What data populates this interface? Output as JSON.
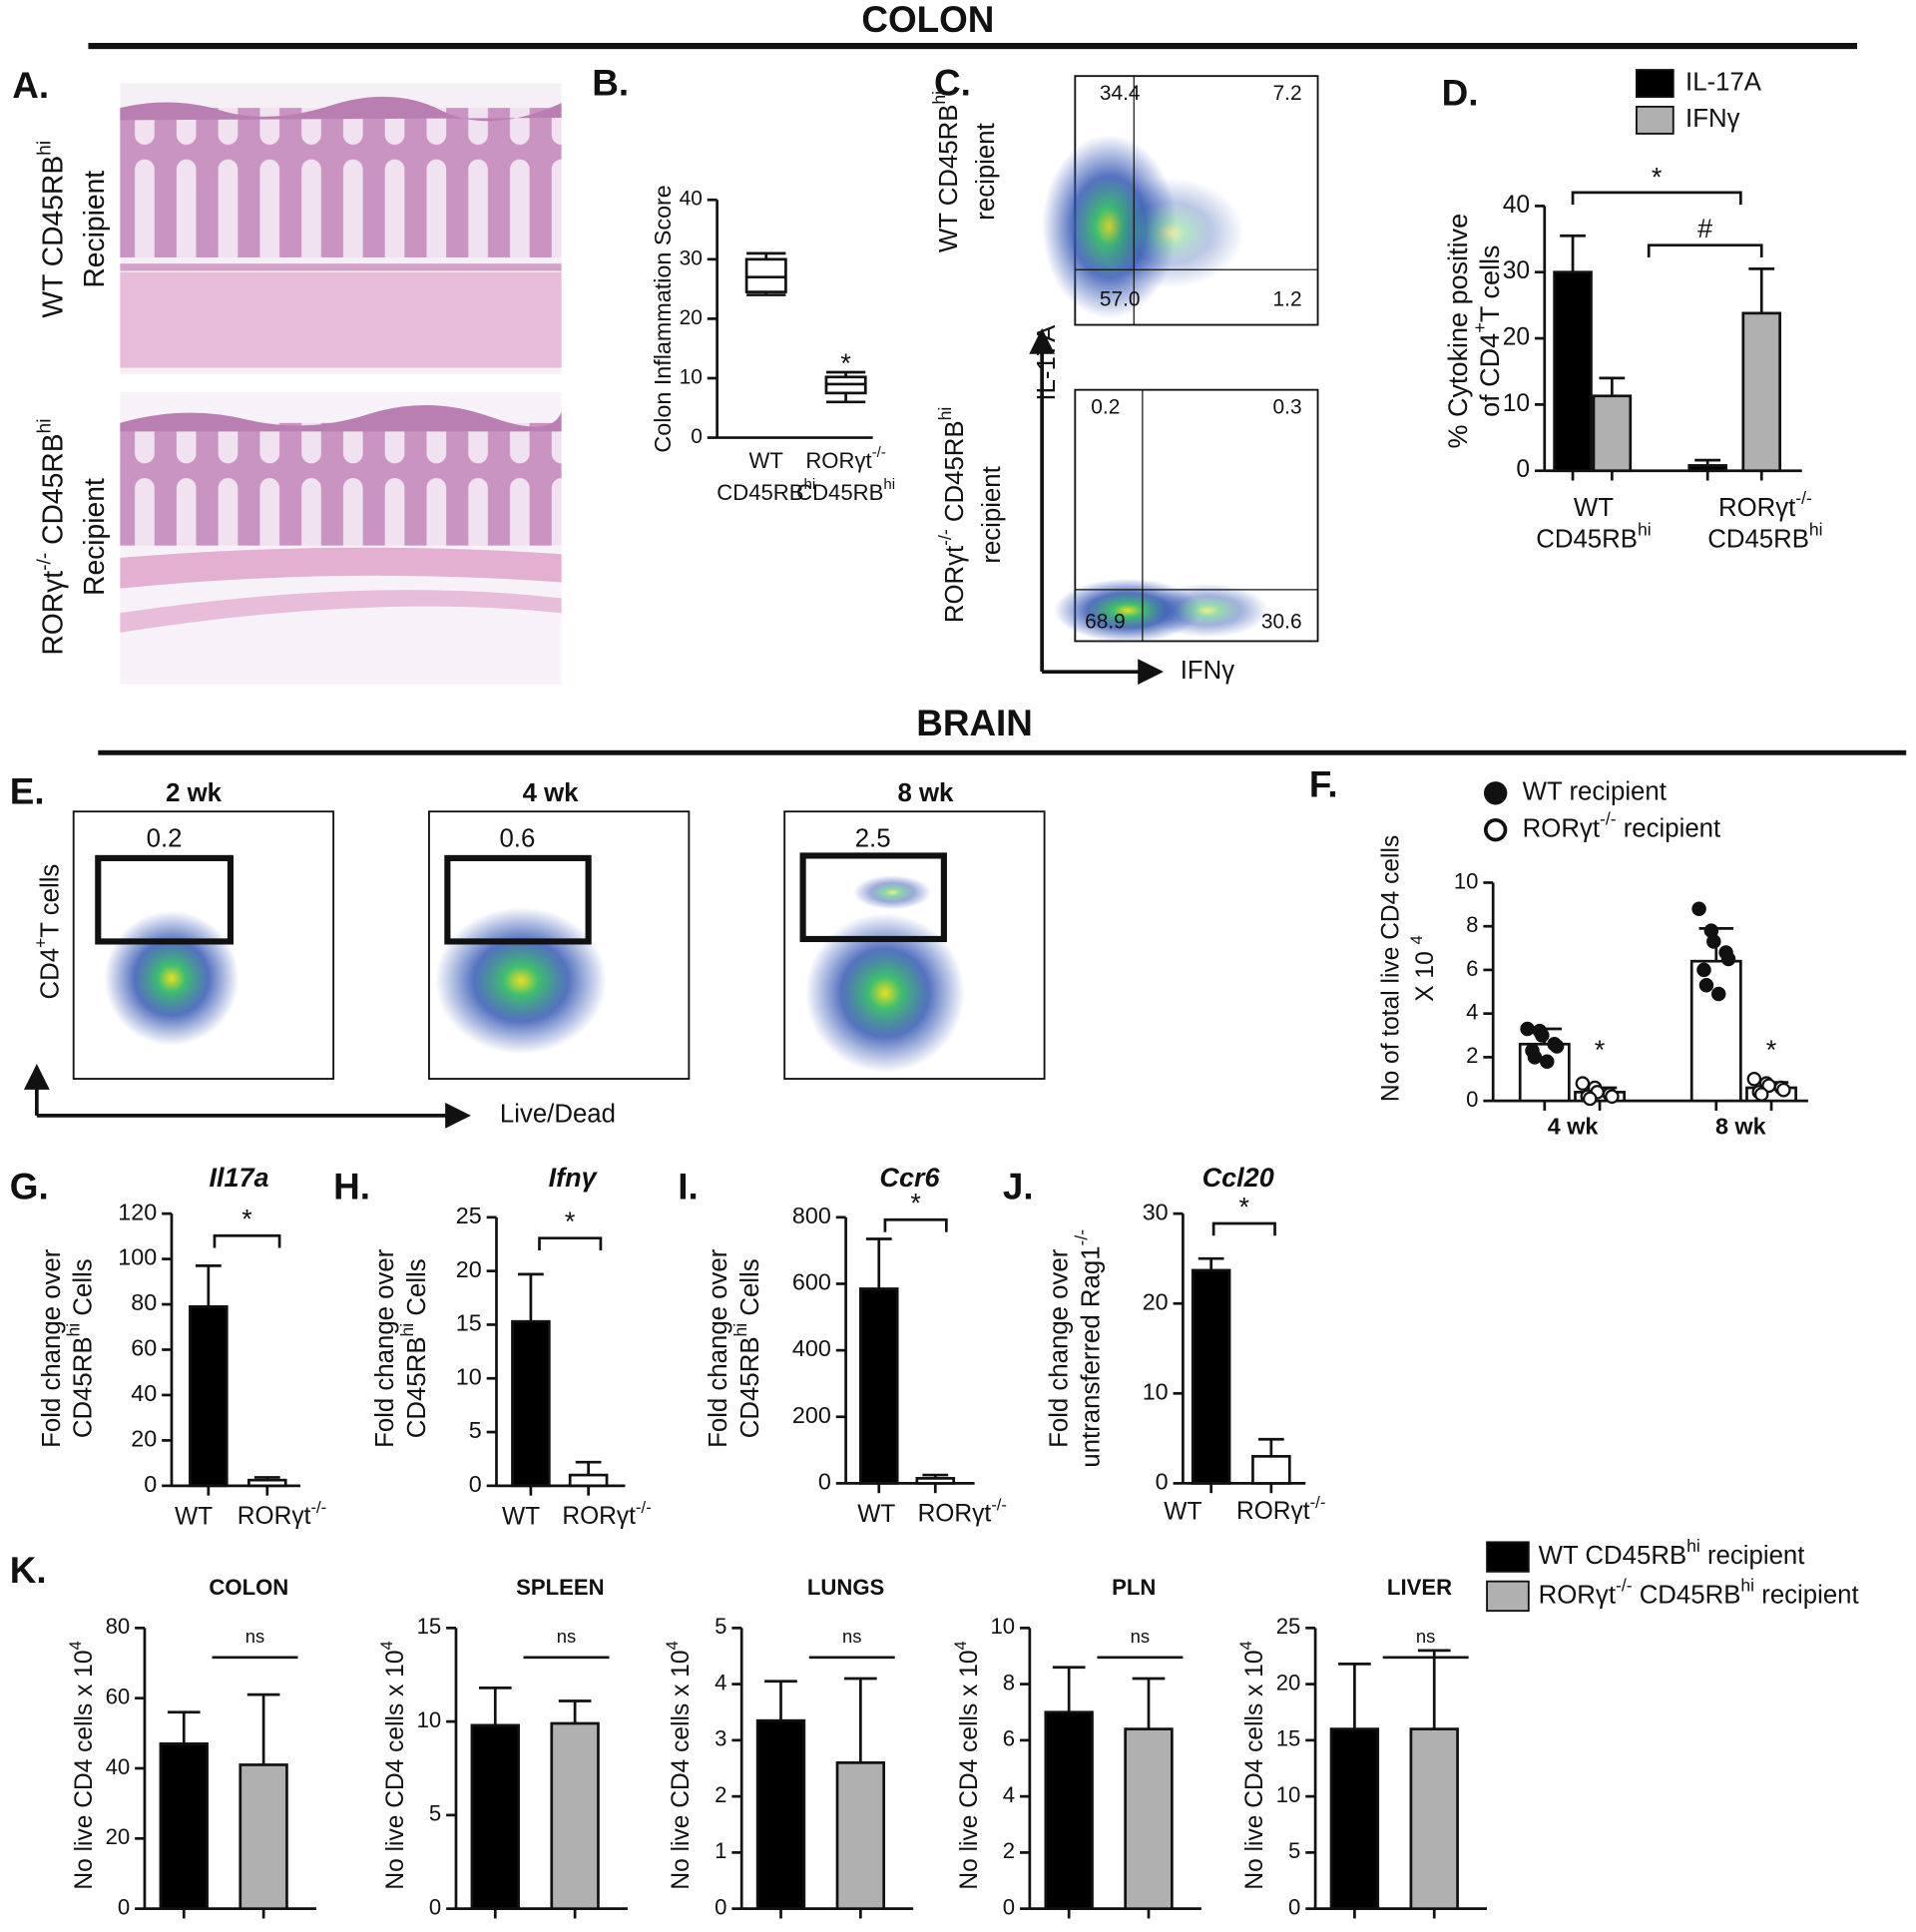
{
  "headers": {
    "colon": "COLON",
    "brain": "BRAIN"
  },
  "panel_labels": {
    "A": "A.",
    "B": "B.",
    "C": "C.",
    "D": "D.",
    "E": "E.",
    "F": "F.",
    "G": "G.",
    "H": "H.",
    "I": "I.",
    "J": "J.",
    "K": "K."
  },
  "histology": {
    "rows": [
      [
        [
          "WT CD45RB",
          "hi"
        ],
        [
          "Recipient"
        ]
      ],
      [
        [
          "RORγt",
          "-/-",
          " CD45RB",
          "hi"
        ],
        [
          "Recipient"
        ]
      ]
    ]
  },
  "flow_c": {
    "y_axis": "IL-17A",
    "x_axis": "IFNγ",
    "plots": [
      {
        "row_label": [
          [
            "WT CD45RB",
            "hi"
          ],
          [
            "recipient"
          ]
        ],
        "quadrants": [
          "34.4",
          "7.2",
          "57.0",
          "1.2"
        ]
      },
      {
        "row_label": [
          [
            "RORγt",
            "-/-",
            " CD45RB",
            "hi"
          ],
          [
            "recipient"
          ]
        ],
        "quadrants": [
          "0.2",
          "0.3",
          "68.9",
          "30.6"
        ]
      }
    ]
  },
  "flow_e": {
    "y_axis": [
      "CD4",
      "+",
      "T cells"
    ],
    "x_axis": "Live/Dead",
    "plots": [
      {
        "title": "2 wk",
        "gate": "0.2"
      },
      {
        "title": "4 wk",
        "gate": "0.6"
      },
      {
        "title": "8 wk",
        "gate": "2.5"
      }
    ]
  },
  "legend": [
    {
      "name": [
        "WT CD45RB",
        "hi",
        " recipient"
      ],
      "color": "#000000"
    },
    {
      "name": [
        "RORγt",
        "-/-",
        " CD45RB",
        "hi",
        " recipient"
      ],
      "color": "#b0b0b0"
    }
  ],
  "chart_data": [
    {
      "type": "box",
      "ylabel": "Colon Inflammation Score",
      "categories": [
        [
          [
            "WT"
          ],
          [
            "CD45RB",
            "hi"
          ]
        ],
        [
          [
            "RORγt",
            "-/-"
          ],
          [
            "CD45RB",
            "hi"
          ]
        ]
      ],
      "boxes": [
        {
          "min": 24,
          "q1": 24.5,
          "median": 27,
          "q3": 30,
          "max": 31
        },
        {
          "min": 6,
          "q1": 7.5,
          "median": 9,
          "q3": 10.2,
          "max": 11
        }
      ],
      "color": "#ffffff",
      "ylim": [
        0,
        40
      ],
      "yticks": [
        0,
        10,
        20,
        30,
        40
      ],
      "annotations": [
        "*"
      ]
    },
    {
      "type": "bar",
      "ylabel": [
        [
          "% Cytokine positive"
        ],
        [
          "of CD4",
          "+",
          "T cells"
        ]
      ],
      "categories": [
        [
          [
            "WT"
          ],
          [
            "CD45RB",
            "hi"
          ]
        ],
        [
          [
            "RORγt",
            "-/-"
          ],
          [
            "CD45RB",
            "hi"
          ]
        ]
      ],
      "series": [
        {
          "name": "IL-17A",
          "color": "#000000",
          "values": [
            30,
            0.8
          ],
          "errors": [
            5.5,
            0.8
          ]
        },
        {
          "name": "IFNγ",
          "color": "#b0b0b0",
          "values": [
            11.3,
            23.8
          ],
          "errors": [
            2.7,
            6.7
          ]
        }
      ],
      "ylim": [
        0,
        40
      ],
      "yticks": [
        0,
        10,
        20,
        30,
        40
      ],
      "annotations": [
        "*",
        "#"
      ]
    },
    {
      "type": "bar",
      "ylabel": [
        [
          "No of  total live CD4 cells"
        ],
        [
          "X 10 ",
          "4"
        ]
      ],
      "categories": [
        "4 wk",
        "8 wk"
      ],
      "series": [
        {
          "name": "WT recipient",
          "color": "#ffffff",
          "marker": "filled",
          "values": [
            2.6,
            6.4
          ],
          "errors": [
            0.7,
            1.5
          ],
          "points": [
            [
              3.3,
              3.2,
              3.0,
              2.6,
              2.5,
              2.3,
              2.0,
              1.8
            ],
            [
              8.8,
              7.8,
              7.3,
              6.8,
              6.5,
              6.0,
              5.3,
              4.9
            ]
          ]
        },
        {
          "name": [
            "RORγt",
            "-/-",
            " recipient"
          ],
          "color": "#ffffff",
          "marker": "open",
          "values": [
            0.4,
            0.6
          ],
          "errors": [
            0.2,
            0.25
          ],
          "points": [
            [
              0.8,
              0.6,
              0.4,
              0.3,
              0.2,
              0.2,
              0.1
            ],
            [
              1.0,
              0.8,
              0.7,
              0.6,
              0.5,
              0.4,
              0.3
            ]
          ]
        }
      ],
      "ylim": [
        0,
        10
      ],
      "yticks": [
        0,
        2,
        4,
        6,
        8,
        10
      ],
      "annotations": [
        "*",
        "*"
      ]
    },
    {
      "type": "bar",
      "title": "Il17a",
      "ylabel": [
        [
          "Fold change over"
        ],
        [
          "CD45RB",
          "hi",
          " Cells"
        ]
      ],
      "categories": [
        "WT",
        [
          "RORγt",
          "-/-"
        ]
      ],
      "values": [
        79,
        2.5
      ],
      "errors": [
        18,
        1.2
      ],
      "colors": [
        "#000000",
        "#ffffff"
      ],
      "ylim": [
        0,
        120
      ],
      "yticks": [
        0,
        20,
        40,
        60,
        80,
        100,
        120
      ],
      "annotations": [
        "*"
      ]
    },
    {
      "type": "bar",
      "title": "Ifnγ",
      "ylabel": [
        [
          "Fold change over"
        ],
        [
          "CD45RB",
          "hi",
          " Cells"
        ]
      ],
      "categories": [
        "WT",
        [
          "RORγt",
          "-/-"
        ]
      ],
      "values": [
        15.3,
        1.0
      ],
      "errors": [
        4.4,
        1.2
      ],
      "colors": [
        "#000000",
        "#ffffff"
      ],
      "ylim": [
        0,
        25
      ],
      "yticks": [
        0,
        5,
        10,
        15,
        20,
        25
      ],
      "annotations": [
        "*"
      ]
    },
    {
      "type": "bar",
      "title": "Ccr6",
      "ylabel": [
        [
          "Fold change over"
        ],
        [
          "CD45RB",
          "hi",
          " Cells"
        ]
      ],
      "categories": [
        "WT",
        [
          "RORγt",
          "-/-"
        ]
      ],
      "values": [
        585,
        15
      ],
      "errors": [
        150,
        10
      ],
      "colors": [
        "#000000",
        "#ffffff"
      ],
      "ylim": [
        0,
        800
      ],
      "yticks": [
        0,
        200,
        400,
        600,
        800
      ],
      "annotations": [
        "*"
      ]
    },
    {
      "type": "bar",
      "title": "Ccl20",
      "ylabel": [
        [
          "Fold change over"
        ],
        [
          "untransferred Rag1",
          "-/-"
        ]
      ],
      "categories": [
        "WT",
        [
          "RORγt",
          "-/-"
        ]
      ],
      "values": [
        23.7,
        3.0
      ],
      "errors": [
        1.3,
        1.9
      ],
      "colors": [
        "#000000",
        "#ffffff"
      ],
      "ylim": [
        0,
        30
      ],
      "yticks": [
        0,
        10,
        20,
        30
      ],
      "annotations": [
        "*"
      ]
    },
    {
      "type": "bar",
      "title": "COLON",
      "ylabel": [
        "No live CD4 cells x 10",
        "4"
      ],
      "series": [
        {
          "color": "#000000",
          "values": [
            47
          ],
          "errors": [
            9
          ]
        },
        {
          "color": "#b0b0b0",
          "values": [
            41
          ],
          "errors": [
            20
          ]
        }
      ],
      "ylim": [
        0,
        80
      ],
      "yticks": [
        0,
        20,
        40,
        60,
        80
      ],
      "annotations": [
        "ns"
      ]
    },
    {
      "type": "bar",
      "title": "SPLEEN",
      "ylabel": [
        "No live CD4 cells x 10",
        "4"
      ],
      "series": [
        {
          "color": "#000000",
          "values": [
            9.8
          ],
          "errors": [
            2
          ]
        },
        {
          "color": "#b0b0b0",
          "values": [
            9.9
          ],
          "errors": [
            1.2
          ]
        }
      ],
      "ylim": [
        0,
        15
      ],
      "yticks": [
        0,
        5,
        10,
        15
      ],
      "annotations": [
        "ns"
      ]
    },
    {
      "type": "bar",
      "title": "LUNGS",
      "ylabel": [
        "No live CD4 cells x 10",
        "4"
      ],
      "series": [
        {
          "color": "#000000",
          "values": [
            3.35
          ],
          "errors": [
            0.7
          ]
        },
        {
          "color": "#b0b0b0",
          "values": [
            2.6
          ],
          "errors": [
            1.5
          ]
        }
      ],
      "ylim": [
        0,
        5
      ],
      "yticks": [
        0,
        1,
        2,
        3,
        4,
        5
      ],
      "annotations": [
        "ns"
      ]
    },
    {
      "type": "bar",
      "title": "PLN",
      "ylabel": [
        "No live CD4 cells x 10",
        "4"
      ],
      "series": [
        {
          "color": "#000000",
          "values": [
            7.0
          ],
          "errors": [
            1.6
          ]
        },
        {
          "color": "#b0b0b0",
          "values": [
            6.4
          ],
          "errors": [
            1.8
          ]
        }
      ],
      "ylim": [
        0,
        10
      ],
      "yticks": [
        0,
        2,
        4,
        6,
        8,
        10
      ],
      "annotations": [
        "ns"
      ]
    },
    {
      "type": "bar",
      "title": "LIVER",
      "ylabel": [
        "No live CD4 cells x 10",
        "4"
      ],
      "series": [
        {
          "color": "#000000",
          "values": [
            16
          ],
          "errors": [
            5.8
          ]
        },
        {
          "color": "#b0b0b0",
          "values": [
            16
          ],
          "errors": [
            7
          ]
        }
      ],
      "ylim": [
        0,
        25
      ],
      "yticks": [
        0,
        5,
        10,
        15,
        20,
        25
      ],
      "annotations": [
        "ns"
      ]
    }
  ]
}
